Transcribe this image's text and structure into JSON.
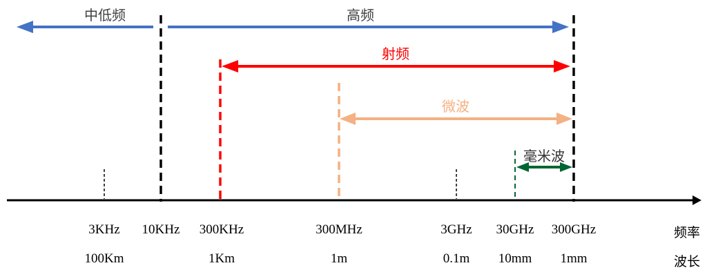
{
  "bands": {
    "low_mid": {
      "label": "中低频",
      "color": "#4472C4"
    },
    "high": {
      "label": "高频",
      "color": "#4472C4"
    },
    "rf": {
      "label": "射频",
      "color": "#FF0000"
    },
    "microwave": {
      "label": "微波",
      "color": "#F4B183"
    },
    "mmwave": {
      "label": "毫米波",
      "color": "#006633"
    }
  },
  "ticks": [
    {
      "freq": "3KHz",
      "wave": "100Km"
    },
    {
      "freq": "10KHz",
      "wave": ""
    },
    {
      "freq": "300KHz",
      "wave": "1Km"
    },
    {
      "freq": "300MHz",
      "wave": "1m"
    },
    {
      "freq": "3GHz",
      "wave": "0.1m"
    },
    {
      "freq": "30GHz",
      "wave": "10mm"
    },
    {
      "freq": "300GHz",
      "wave": "1mm"
    }
  ],
  "axis": {
    "freq_label": "频率",
    "wave_label": "波长"
  }
}
